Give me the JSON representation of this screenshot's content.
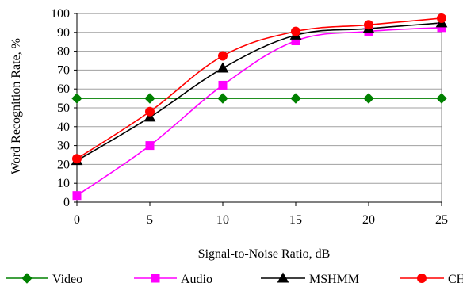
{
  "chart_data": {
    "type": "line",
    "title": "",
    "xlabel": "Signal-to-Noise Ratio, dB",
    "ylabel": "Word Recognition Rate, %",
    "x": [
      0,
      5,
      10,
      15,
      20,
      25
    ],
    "xlim": [
      0,
      25
    ],
    "ylim": [
      0,
      100
    ],
    "x_ticks": [
      "0",
      "5",
      "10",
      "15",
      "20",
      "25"
    ],
    "y_ticks": [
      "0",
      "10",
      "20",
      "30",
      "40",
      "50",
      "60",
      "70",
      "80",
      "90",
      "100"
    ],
    "grid": "horizontal gridlines",
    "legend_position": "bottom",
    "series": [
      {
        "name": "Video",
        "values": [
          55,
          55,
          55,
          55,
          55,
          55
        ],
        "color": "#008000",
        "marker": "diamond"
      },
      {
        "name": "Audio",
        "values": [
          3.5,
          30,
          62,
          85.5,
          90.5,
          92.5
        ],
        "color": "#ff00ff",
        "marker": "square"
      },
      {
        "name": "MSHMM",
        "values": [
          22,
          45,
          71,
          88.5,
          92,
          95
        ],
        "color": "#000000",
        "marker": "triangle"
      },
      {
        "name": "CHMM",
        "values": [
          23,
          48,
          77.5,
          90.5,
          94,
          97.5
        ],
        "color": "#ff0000",
        "marker": "circle"
      }
    ]
  }
}
